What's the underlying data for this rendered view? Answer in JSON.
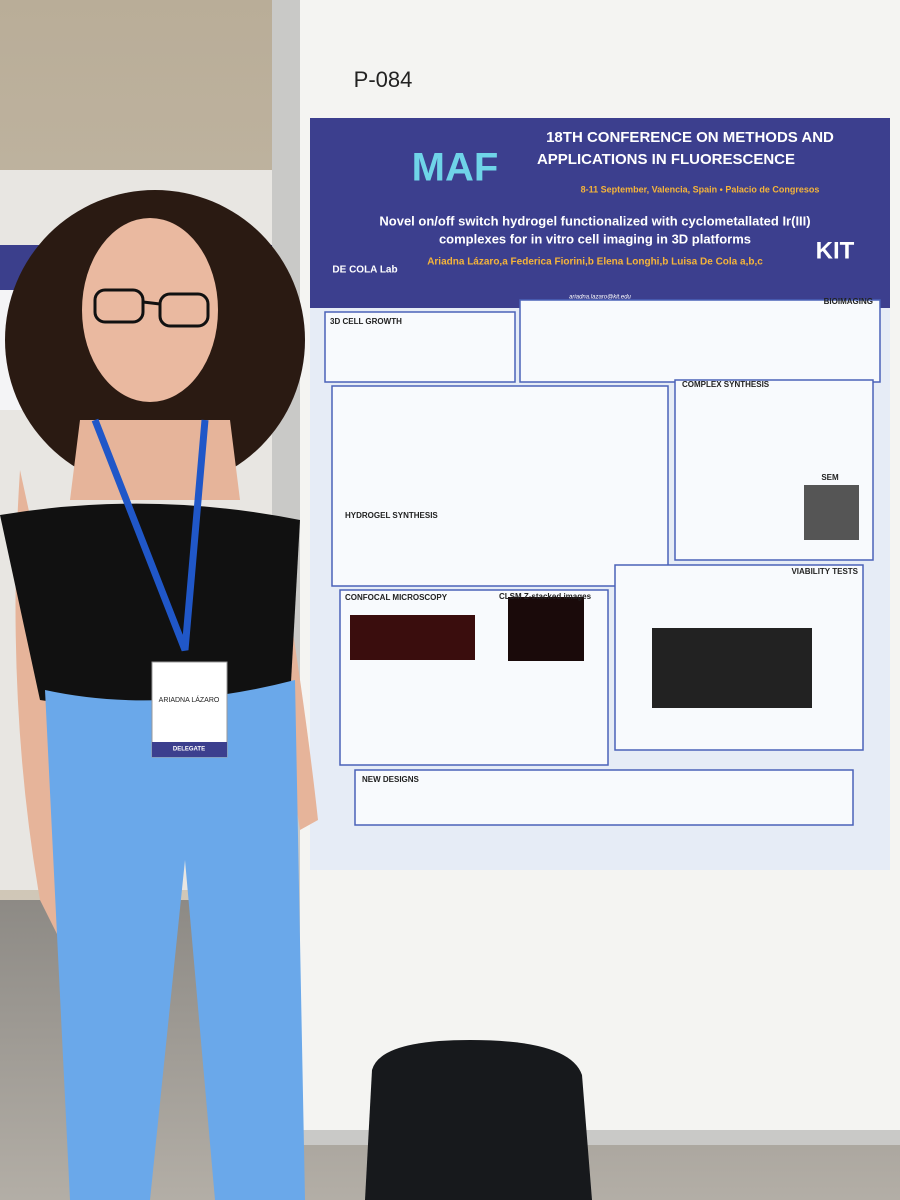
{
  "board": {
    "label": "P-084"
  },
  "poster": {
    "logo": "MAF",
    "conference": "18TH CONFERENCE ON METHODS AND",
    "conference_line2": "APPLICATIONS IN FLUORESCENCE",
    "dates": "8-11 September, Valencia, Spain • Palacio de Congresos",
    "title_line1": "Novel on/off switch hydrogel functionalized with cyclometallated Ir(III)",
    "title_line2": "complexes for in vitro cell imaging in 3D platforms",
    "authors": "Ariadna Lázaro,a Federica Fiorini,b Elena Longhi,b Luisa De Cola a,b,c",
    "email": "ariadna.lazaro@kit.edu",
    "lab_logo": "DE COLA Lab",
    "institute_logo": "KIT",
    "sections": [
      "3D CELL GROWTH",
      "BIOIMAGING",
      "HYDROGEL SYNTHESIS",
      "COMPLEX SYNTHESIS",
      "CONFOCAL MICROSCOPY",
      "CLSM Z-stacked images",
      "VIABILITY TESTS",
      "NEW DESIGNS",
      "SEM"
    ]
  },
  "badge": {
    "name": "ARIADNA LÁZARO",
    "role": "DELEGATE"
  }
}
